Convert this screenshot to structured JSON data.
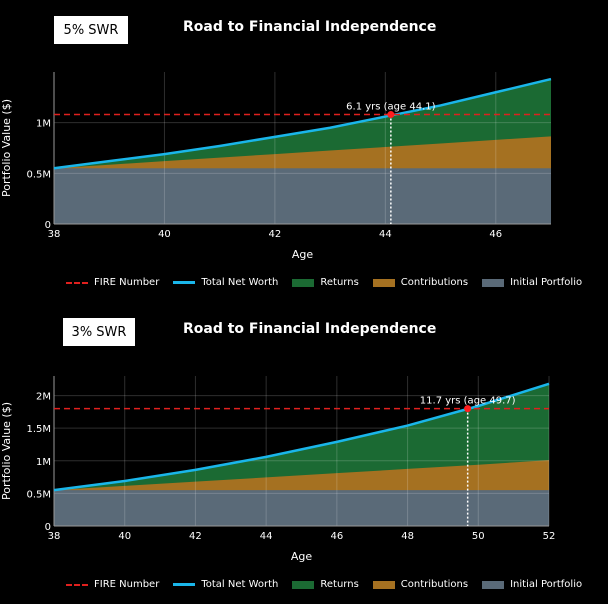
{
  "colors": {
    "fire": "#e0201e",
    "networth": "#1ab6ea",
    "returns": "#1b6a33",
    "contributions": "#a57121",
    "initial": "#5a6a78",
    "grid": "#444444",
    "axis": "#9a9a9a",
    "marker": "#ff1e1e"
  },
  "legend": {
    "fire": "FIRE Number",
    "networth": "Total Net Worth",
    "returns": "Returns",
    "contributions": "Contributions",
    "initial": "Initial Portfolio"
  },
  "chart_data": [
    {
      "type": "area",
      "badge": "5% SWR",
      "title": "Road to Financial Independence",
      "xlabel": "Age",
      "ylabel": "Portfolio Value ($)",
      "xlim": [
        38,
        47
      ],
      "ylim": [
        0,
        1.5
      ],
      "x_ticks": [
        38,
        40,
        42,
        44,
        46
      ],
      "x_tick_labels": [
        "38",
        "40",
        "42",
        "44",
        "46"
      ],
      "y_ticks": [
        0,
        0.5,
        1
      ],
      "y_tick_labels": [
        "0",
        "0.5M",
        "1M"
      ],
      "initial_portfolio": 0.55,
      "fire_number": 1.08,
      "milestone": {
        "x": 44.1,
        "y": 1.08,
        "label": "6.1 yrs (age 44.1)"
      },
      "series": [
        {
          "name": "Total Net Worth",
          "x": [
            38,
            39,
            40,
            41,
            42,
            43,
            44,
            45,
            46,
            47
          ],
          "values": [
            0.55,
            0.62,
            0.69,
            0.77,
            0.86,
            0.95,
            1.06,
            1.17,
            1.3,
            1.43
          ]
        },
        {
          "name": "Contributions",
          "x": [
            38,
            39,
            40,
            41,
            42,
            43,
            44,
            45,
            46,
            47
          ],
          "values": [
            0.55,
            0.585,
            0.62,
            0.655,
            0.69,
            0.725,
            0.76,
            0.795,
            0.83,
            0.865
          ]
        },
        {
          "name": "Initial Portfolio",
          "x": [
            38,
            47
          ],
          "values": [
            0.55,
            0.55
          ]
        }
      ]
    },
    {
      "type": "area",
      "badge": "3% SWR",
      "title": "Road to Financial Independence",
      "xlabel": "Age",
      "ylabel": "Portfolio Value ($)",
      "xlim": [
        38,
        52
      ],
      "ylim": [
        0,
        2.3
      ],
      "x_ticks": [
        38,
        40,
        42,
        44,
        46,
        48,
        50,
        52
      ],
      "x_tick_labels": [
        "38",
        "40",
        "42",
        "44",
        "46",
        "48",
        "50",
        "52"
      ],
      "y_ticks": [
        0,
        0.5,
        1,
        1.5,
        2
      ],
      "y_tick_labels": [
        "0",
        "0.5M",
        "1M",
        "1.5M",
        "2M"
      ],
      "initial_portfolio": 0.55,
      "fire_number": 1.8,
      "milestone": {
        "x": 49.7,
        "y": 1.8,
        "label": "11.7 yrs (age 49.7)"
      },
      "series": [
        {
          "name": "Total Net Worth",
          "x": [
            38,
            40,
            42,
            44,
            46,
            48,
            50,
            52
          ],
          "values": [
            0.55,
            0.69,
            0.86,
            1.06,
            1.29,
            1.54,
            1.84,
            2.18
          ]
        },
        {
          "name": "Contributions",
          "x": [
            38,
            40,
            42,
            44,
            46,
            48,
            50,
            52
          ],
          "values": [
            0.55,
            0.615,
            0.68,
            0.745,
            0.81,
            0.875,
            0.94,
            1.01
          ]
        },
        {
          "name": "Initial Portfolio",
          "x": [
            38,
            52
          ],
          "values": [
            0.55,
            0.55
          ]
        }
      ]
    }
  ]
}
